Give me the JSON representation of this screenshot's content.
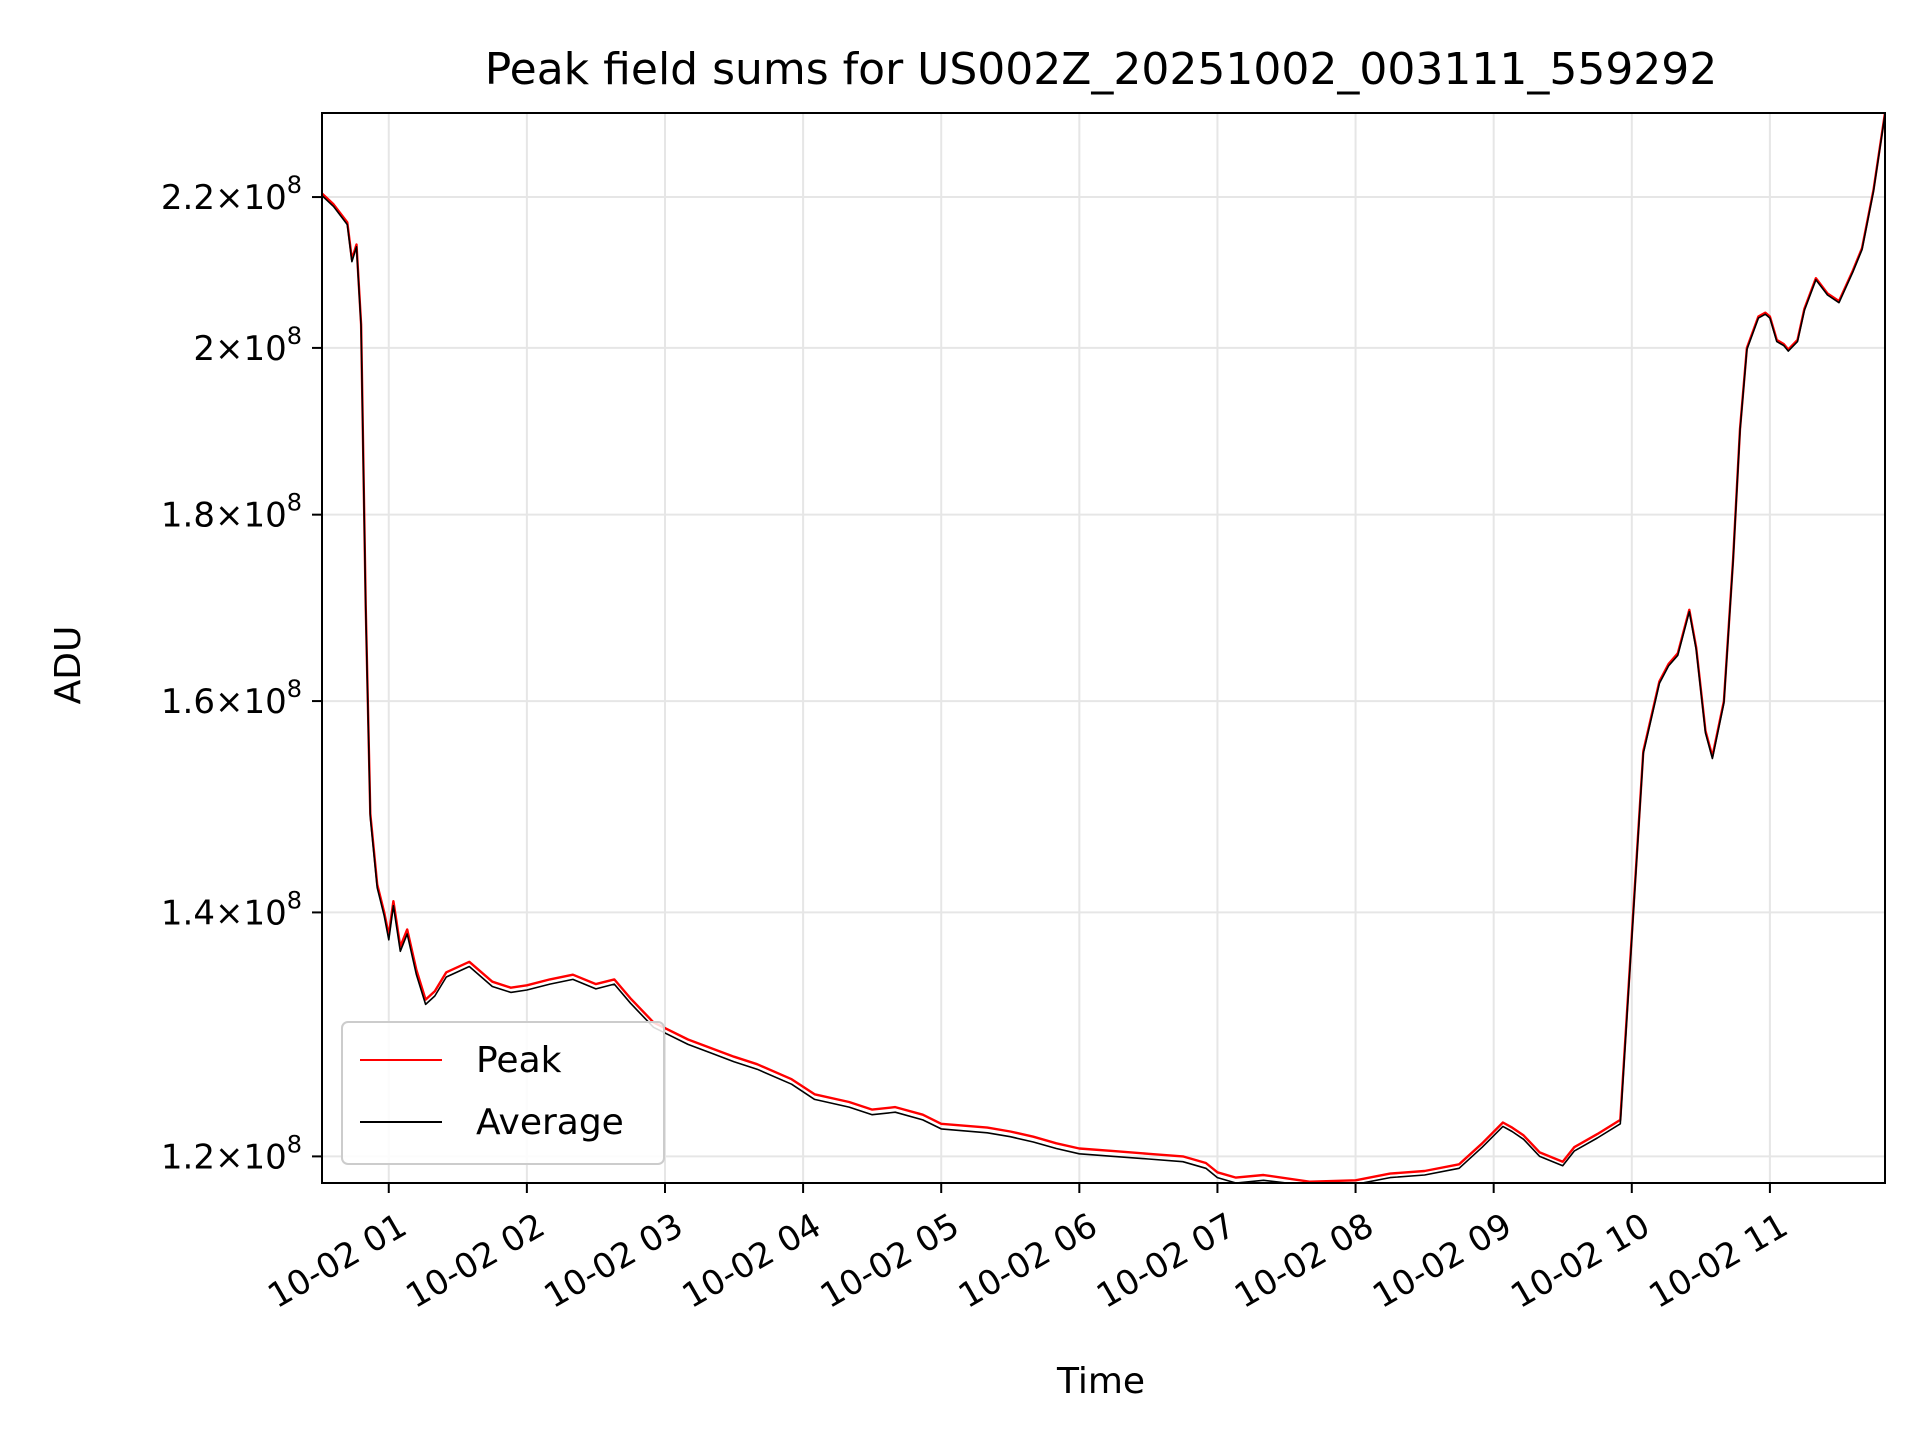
{
  "chart_data": {
    "type": "line",
    "title": "Peak field sums for US002Z_20251002_003111_559292",
    "xlabel": "Time",
    "ylabel": "ADU",
    "yscale": "log",
    "xlim": [
      "2025-10-02 00:31",
      "2025-10-02 11:50"
    ],
    "ylim": [
      118000000,
      232000000
    ],
    "grid": true,
    "legend_position": "lower-left",
    "x_ticks": [
      {
        "value": "2025-10-02 01:00",
        "label": "10-02 01"
      },
      {
        "value": "2025-10-02 02:00",
        "label": "10-02 02"
      },
      {
        "value": "2025-10-02 03:00",
        "label": "10-02 03"
      },
      {
        "value": "2025-10-02 04:00",
        "label": "10-02 04"
      },
      {
        "value": "2025-10-02 05:00",
        "label": "10-02 05"
      },
      {
        "value": "2025-10-02 06:00",
        "label": "10-02 06"
      },
      {
        "value": "2025-10-02 07:00",
        "label": "10-02 07"
      },
      {
        "value": "2025-10-02 08:00",
        "label": "10-02 08"
      },
      {
        "value": "2025-10-02 09:00",
        "label": "10-02 09"
      },
      {
        "value": "2025-10-02 10:00",
        "label": "10-02 10"
      },
      {
        "value": "2025-10-02 11:00",
        "label": "10-02 11"
      }
    ],
    "y_ticks": [
      {
        "value": 120000000,
        "mantissa": "1.2",
        "base": "10",
        "exponent": "8"
      },
      {
        "value": 140000000,
        "mantissa": "1.4",
        "base": "10",
        "exponent": "8"
      },
      {
        "value": 160000000,
        "mantissa": "1.6",
        "base": "10",
        "exponent": "8"
      },
      {
        "value": 180000000,
        "mantissa": "1.8",
        "base": "10",
        "exponent": "8"
      },
      {
        "value": 200000000,
        "mantissa": "2",
        "base": "10",
        "exponent": "8"
      },
      {
        "value": 220000000,
        "mantissa": "2.2",
        "base": "10",
        "exponent": "8"
      }
    ],
    "series": [
      {
        "name": "Peak",
        "color": "#ff0000",
        "x": [
          "00:31",
          "00:36",
          "00:42",
          "00:44",
          "00:46",
          "00:48",
          "00:50",
          "00:52",
          "00:55",
          "00:58",
          "01:00",
          "01:02",
          "01:05",
          "01:08",
          "01:12",
          "01:16",
          "01:20",
          "01:25",
          "01:35",
          "01:45",
          "01:53",
          "02:00",
          "02:10",
          "02:20",
          "02:30",
          "02:38",
          "02:45",
          "02:55",
          "03:10",
          "03:20",
          "03:30",
          "03:40",
          "03:55",
          "04:05",
          "04:20",
          "04:30",
          "04:40",
          "04:52",
          "05:00",
          "05:20",
          "05:30",
          "05:40",
          "05:50",
          "06:00",
          "06:15",
          "06:30",
          "06:45",
          "06:55",
          "07:00",
          "07:08",
          "07:20",
          "07:40",
          "08:00",
          "08:15",
          "08:30",
          "08:45",
          "08:55",
          "09:04",
          "09:08",
          "09:13",
          "09:20",
          "09:30",
          "09:35",
          "09:45",
          "09:55",
          "10:05",
          "10:12",
          "10:16",
          "10:20",
          "10:25",
          "10:28",
          "10:32",
          "10:35",
          "10:40",
          "10:44",
          "10:47",
          "10:50",
          "10:55",
          "10:58",
          "11:00",
          "11:03",
          "11:06",
          "11:08",
          "11:12",
          "11:15",
          "11:20",
          "11:25",
          "11:30",
          "11:36",
          "11:40",
          "11:45",
          "11:50"
        ],
        "y": [
          220.5,
          219.0,
          216.5,
          211.5,
          213.5,
          203.0,
          170.0,
          149.0,
          142.5,
          140.0,
          138.0,
          141.0,
          137.0,
          138.5,
          135.0,
          132.5,
          133.2,
          134.8,
          135.7,
          134.0,
          133.5,
          133.7,
          134.2,
          134.6,
          133.8,
          134.2,
          132.6,
          130.6,
          129.2,
          128.5,
          127.8,
          127.2,
          126.0,
          124.8,
          124.2,
          123.6,
          123.8,
          123.2,
          122.5,
          122.2,
          121.9,
          121.5,
          121.0,
          120.6,
          120.4,
          120.2,
          120.0,
          119.5,
          118.8,
          118.4,
          118.6,
          118.1,
          118.2,
          118.7,
          118.9,
          119.4,
          121.0,
          122.6,
          122.2,
          121.6,
          120.3,
          119.6,
          120.7,
          121.7,
          122.8,
          155.0,
          162.0,
          163.8,
          164.9,
          169.5,
          165.5,
          157.0,
          154.5,
          160.0,
          175.0,
          190.0,
          200.0,
          204.0,
          204.5,
          204.0,
          201.0,
          200.5,
          199.8,
          201.0,
          205.0,
          209.0,
          207.0,
          206.0,
          210.0,
          213.0,
          221.0,
          232.0
        ]
      },
      {
        "name": "Average",
        "color": "#000000",
        "x": [
          "00:31",
          "00:36",
          "00:42",
          "00:44",
          "00:46",
          "00:48",
          "00:50",
          "00:52",
          "00:55",
          "00:58",
          "01:00",
          "01:02",
          "01:05",
          "01:08",
          "01:12",
          "01:16",
          "01:20",
          "01:25",
          "01:35",
          "01:45",
          "01:53",
          "02:00",
          "02:10",
          "02:20",
          "02:30",
          "02:38",
          "02:45",
          "02:55",
          "03:10",
          "03:20",
          "03:30",
          "03:40",
          "03:55",
          "04:05",
          "04:20",
          "04:30",
          "04:40",
          "04:52",
          "05:00",
          "05:20",
          "05:30",
          "05:40",
          "05:50",
          "06:00",
          "06:15",
          "06:30",
          "06:45",
          "06:55",
          "07:00",
          "07:08",
          "07:20",
          "07:40",
          "08:00",
          "08:15",
          "08:30",
          "08:45",
          "08:55",
          "09:04",
          "09:08",
          "09:13",
          "09:20",
          "09:30",
          "09:35",
          "09:45",
          "09:55",
          "10:05",
          "10:12",
          "10:16",
          "10:20",
          "10:25",
          "10:28",
          "10:32",
          "10:35",
          "10:40",
          "10:44",
          "10:47",
          "10:50",
          "10:55",
          "10:58",
          "11:00",
          "11:03",
          "11:06",
          "11:08",
          "11:12",
          "11:15",
          "11:20",
          "11:25",
          "11:30",
          "11:36",
          "11:40",
          "11:45",
          "11:50"
        ],
        "y": [
          220.2,
          218.7,
          216.2,
          211.2,
          213.2,
          202.7,
          169.7,
          148.7,
          142.2,
          139.7,
          137.6,
          140.6,
          136.6,
          138.1,
          134.6,
          132.1,
          132.8,
          134.4,
          135.3,
          133.6,
          133.1,
          133.3,
          133.8,
          134.2,
          133.4,
          133.8,
          132.2,
          130.2,
          128.8,
          128.1,
          127.4,
          126.8,
          125.6,
          124.4,
          123.8,
          123.2,
          123.4,
          122.8,
          122.1,
          121.8,
          121.5,
          121.1,
          120.6,
          120.2,
          120.0,
          119.8,
          119.6,
          119.1,
          118.4,
          118.0,
          118.2,
          117.8,
          117.9,
          118.4,
          118.6,
          119.1,
          120.7,
          122.3,
          121.9,
          121.3,
          120.0,
          119.3,
          120.4,
          121.4,
          122.5,
          154.8,
          161.8,
          163.6,
          164.7,
          169.3,
          165.3,
          156.8,
          154.3,
          159.8,
          174.8,
          189.8,
          199.8,
          203.8,
          204.3,
          203.8,
          200.8,
          200.3,
          199.6,
          200.8,
          204.8,
          208.8,
          206.8,
          205.8,
          209.8,
          212.8,
          220.8,
          231.8
        ]
      }
    ],
    "y_unit_scale": 1000000
  }
}
